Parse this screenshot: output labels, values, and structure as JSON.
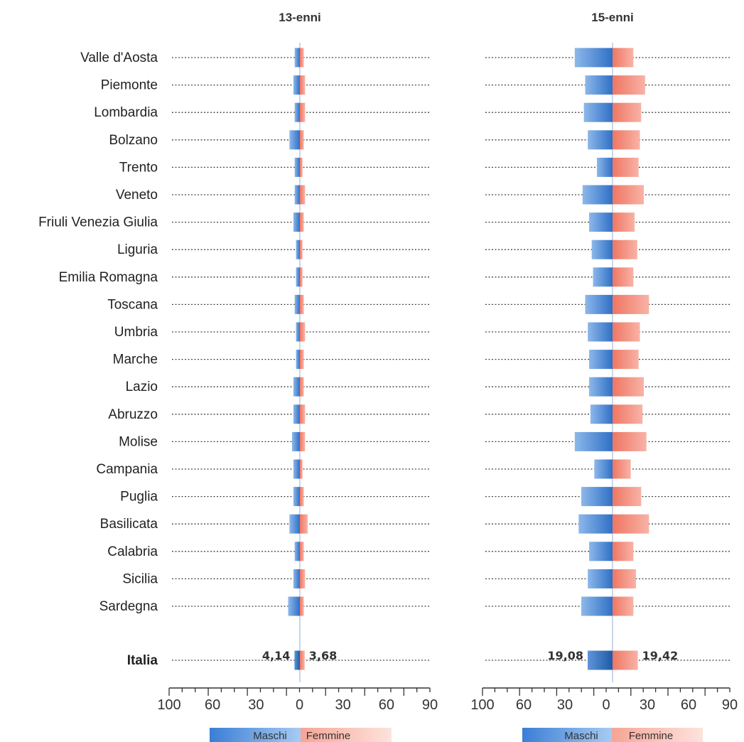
{
  "chart_data": {
    "type": "bar",
    "orientation": "horizontal-butterfly",
    "categories": [
      "Valle d'Aosta",
      "Piemonte",
      "Lombardia",
      "Bolzano",
      "Trento",
      "Veneto",
      "Friuli Venezia Giulia",
      "Liguria",
      "Emilia Romagna",
      "Toscana",
      "Umbria",
      "Marche",
      "Lazio",
      "Abruzzo",
      "Molise",
      "Campania",
      "Puglia",
      "Basilicata",
      "Calabria",
      "Sicilia",
      "Sardegna"
    ],
    "total_category": "Italia",
    "legend": [
      "Maschi",
      "Femmine"
    ],
    "ticks": [
      "100",
      "60",
      "30",
      "0",
      "30",
      "60",
      "90"
    ],
    "colors": {
      "maschi": "#3c7fd4",
      "femmine": "#f27c6a"
    },
    "panels": [
      {
        "title": "13-enni",
        "series": [
          {
            "name": "Maschi",
            "values": [
              4,
              5,
              4,
              8,
              4,
              4,
              5,
              3,
              3,
              4,
              3,
              3,
              5,
              5,
              6,
              5,
              5,
              8,
              4,
              5,
              9
            ]
          },
          {
            "name": "Femmine",
            "values": [
              3,
              4,
              4,
              3,
              2,
              4,
              3,
              2,
              2,
              3,
              4,
              3,
              3,
              4,
              4,
              2,
              3,
              6,
              3,
              4,
              3
            ]
          }
        ],
        "total": {
          "maschi": 4.14,
          "femmine": 3.68,
          "maschi_label": "4,14",
          "femmine_label": "3,68"
        }
      },
      {
        "title": "15-enni",
        "series": [
          {
            "name": "Maschi",
            "values": [
              29,
              21,
              22,
              19,
              12,
              23,
              18,
              16,
              15,
              21,
              19,
              18,
              18,
              17,
              29,
              14,
              24,
              26,
              18,
              19,
              24
            ]
          },
          {
            "name": "Femmine",
            "values": [
              16,
              25,
              22,
              21,
              20,
              24,
              17,
              19,
              16,
              28,
              21,
              20,
              24,
              23,
              26,
              14,
              22,
              28,
              16,
              18,
              16
            ]
          }
        ],
        "total": {
          "maschi": 19.08,
          "femmine": 19.42,
          "maschi_label": "19,08",
          "femmine_label": "19,42"
        }
      }
    ]
  }
}
